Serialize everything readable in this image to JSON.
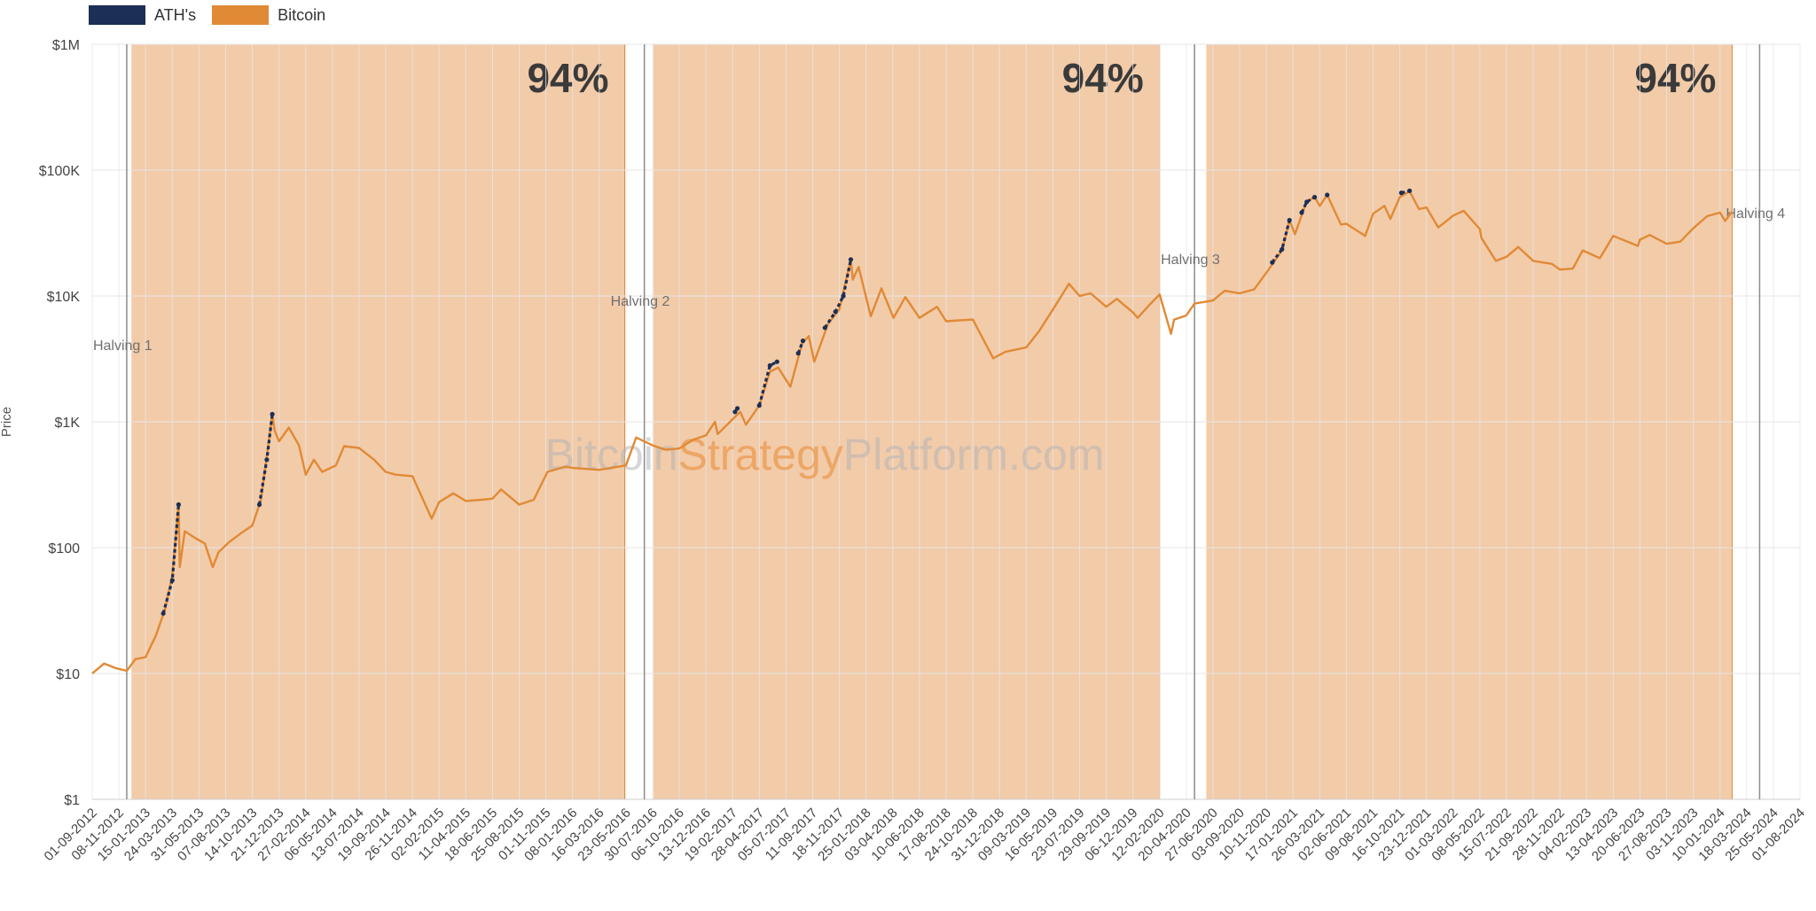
{
  "legend": [
    {
      "name": "ATH's",
      "color": "#1c2f55"
    },
    {
      "name": "Bitcoin",
      "color": "#e08a35"
    }
  ],
  "watermark": {
    "part1": "Bitcoin",
    "part2": "Strategy",
    "part3": "Platform.com"
  },
  "colors": {
    "line": "#e08a35",
    "ath": "#1c2f55",
    "band": "#f2cba9",
    "grid": "#e6e6e6"
  },
  "chart_data": {
    "type": "line",
    "title": "",
    "xlabel": "",
    "ylabel": "Price",
    "y_scale": "log",
    "ylim": [
      1,
      1000000
    ],
    "y_ticks": [
      "$1",
      "$10",
      "$100",
      "$1K",
      "$10K",
      "$100K",
      "$1M"
    ],
    "x_range": [
      "2012-09-01",
      "2024-08-01"
    ],
    "x_ticks": [
      "01-09-2012",
      "08-11-2012",
      "15-01-2013",
      "24-03-2013",
      "31-05-2013",
      "07-08-2013",
      "14-10-2013",
      "21-12-2013",
      "27-02-2014",
      "06-05-2014",
      "13-07-2014",
      "19-09-2014",
      "26-11-2014",
      "02-02-2015",
      "11-04-2015",
      "18-06-2015",
      "25-08-2015",
      "01-11-2015",
      "08-01-2016",
      "16-03-2016",
      "23-05-2016",
      "30-07-2016",
      "06-10-2016",
      "13-12-2016",
      "19-02-2017",
      "28-04-2017",
      "05-07-2017",
      "11-09-2017",
      "18-11-2017",
      "25-01-2018",
      "03-04-2018",
      "10-06-2018",
      "17-08-2018",
      "24-10-2018",
      "31-12-2018",
      "09-03-2019",
      "16-05-2019",
      "23-07-2019",
      "29-09-2019",
      "06-12-2019",
      "12-02-2020",
      "20-04-2020",
      "27-06-2020",
      "03-09-2020",
      "10-11-2020",
      "17-01-2021",
      "26-03-2021",
      "02-06-2021",
      "09-08-2021",
      "16-10-2021",
      "23-12-2021",
      "01-03-2022",
      "08-05-2022",
      "15-07-2022",
      "21-09-2022",
      "28-11-2022",
      "04-02-2023",
      "13-04-2023",
      "20-06-2023",
      "27-08-2023",
      "03-11-2023",
      "10-01-2024",
      "18-03-2024",
      "25-05-2024",
      "01-08-2024"
    ],
    "cycles": [
      {
        "label": "94%",
        "start": "2012-12-10",
        "end": "2016-05-20"
      },
      {
        "label": "94%",
        "start": "2016-08-01",
        "end": "2020-02-12"
      },
      {
        "label": "94%",
        "start": "2020-06-10",
        "end": "2024-02-10"
      }
    ],
    "halvings": [
      {
        "label": "Halving 1",
        "date": "2012-11-28"
      },
      {
        "label": "Halving 2",
        "date": "2016-07-09"
      },
      {
        "label": "Halving 3",
        "date": "2020-05-11"
      },
      {
        "label": "Halving 4",
        "date": "2024-04-20"
      }
    ],
    "series": [
      {
        "name": "Bitcoin",
        "points": [
          [
            "2012-09-01",
            10
          ],
          [
            "2012-10-01",
            12
          ],
          [
            "2012-11-01",
            11
          ],
          [
            "2012-11-28",
            10.5
          ],
          [
            "2012-12-20",
            13
          ],
          [
            "2013-01-15",
            13.5
          ],
          [
            "2013-02-10",
            20
          ],
          [
            "2013-03-05",
            32
          ],
          [
            "2013-03-24",
            60
          ],
          [
            "2013-04-09",
            220
          ],
          [
            "2013-04-12",
            70
          ],
          [
            "2013-04-25",
            135
          ],
          [
            "2013-05-20",
            120
          ],
          [
            "2013-06-15",
            108
          ],
          [
            "2013-07-05",
            70
          ],
          [
            "2013-07-20",
            92
          ],
          [
            "2013-08-15",
            110
          ],
          [
            "2013-09-15",
            130
          ],
          [
            "2013-10-14",
            150
          ],
          [
            "2013-11-05",
            240
          ],
          [
            "2013-11-25",
            700
          ],
          [
            "2013-12-04",
            1150
          ],
          [
            "2013-12-10",
            850
          ],
          [
            "2013-12-21",
            700
          ],
          [
            "2014-01-15",
            900
          ],
          [
            "2014-02-10",
            650
          ],
          [
            "2014-02-27",
            380
          ],
          [
            "2014-03-20",
            500
          ],
          [
            "2014-04-10",
            400
          ],
          [
            "2014-05-15",
            450
          ],
          [
            "2014-06-05",
            640
          ],
          [
            "2014-07-13",
            620
          ],
          [
            "2014-08-20",
            500
          ],
          [
            "2014-09-19",
            400
          ],
          [
            "2014-10-15",
            380
          ],
          [
            "2014-11-26",
            370
          ],
          [
            "2015-01-14",
            170
          ],
          [
            "2015-02-02",
            230
          ],
          [
            "2015-03-10",
            270
          ],
          [
            "2015-04-11",
            235
          ],
          [
            "2015-05-20",
            240
          ],
          [
            "2015-06-18",
            245
          ],
          [
            "2015-07-10",
            290
          ],
          [
            "2015-08-25",
            220
          ],
          [
            "2015-10-01",
            240
          ],
          [
            "2015-11-05",
            400
          ],
          [
            "2015-12-20",
            440
          ],
          [
            "2016-01-08",
            430
          ],
          [
            "2016-03-16",
            415
          ],
          [
            "2016-05-23",
            450
          ],
          [
            "2016-06-18",
            750
          ],
          [
            "2016-07-30",
            650
          ],
          [
            "2016-09-01",
            600
          ],
          [
            "2016-10-06",
            615
          ],
          [
            "2016-11-10",
            720
          ],
          [
            "2016-12-13",
            780
          ],
          [
            "2017-01-05",
            1000
          ],
          [
            "2017-01-12",
            800
          ],
          [
            "2017-02-19",
            1050
          ],
          [
            "2017-03-10",
            1200
          ],
          [
            "2017-03-25",
            950
          ],
          [
            "2017-04-28",
            1350
          ],
          [
            "2017-05-25",
            2500
          ],
          [
            "2017-06-15",
            2700
          ],
          [
            "2017-07-16",
            1900
          ],
          [
            "2017-08-15",
            4200
          ],
          [
            "2017-09-01",
            4800
          ],
          [
            "2017-09-15",
            3000
          ],
          [
            "2017-10-20",
            6000
          ],
          [
            "2017-11-18",
            7800
          ],
          [
            "2017-12-17",
            19500
          ],
          [
            "2017-12-22",
            13500
          ],
          [
            "2018-01-06",
            17000
          ],
          [
            "2018-02-06",
            6900
          ],
          [
            "2018-03-05",
            11500
          ],
          [
            "2018-04-05",
            6700
          ],
          [
            "2018-05-05",
            9800
          ],
          [
            "2018-06-10",
            6700
          ],
          [
            "2018-07-25",
            8200
          ],
          [
            "2018-08-17",
            6300
          ],
          [
            "2018-09-20",
            6400
          ],
          [
            "2018-10-24",
            6500
          ],
          [
            "2018-11-20",
            4500
          ],
          [
            "2018-12-15",
            3200
          ],
          [
            "2019-01-15",
            3600
          ],
          [
            "2019-03-09",
            3900
          ],
          [
            "2019-04-10",
            5200
          ],
          [
            "2019-05-16",
            7800
          ],
          [
            "2019-06-26",
            12500
          ],
          [
            "2019-07-23",
            10000
          ],
          [
            "2019-08-20",
            10500
          ],
          [
            "2019-09-29",
            8200
          ],
          [
            "2019-10-26",
            9500
          ],
          [
            "2019-12-06",
            7400
          ],
          [
            "2019-12-18",
            6700
          ],
          [
            "2020-01-20",
            8700
          ],
          [
            "2020-02-12",
            10300
          ],
          [
            "2020-03-12",
            5000
          ],
          [
            "2020-03-20",
            6500
          ],
          [
            "2020-04-20",
            7000
          ],
          [
            "2020-05-11",
            8700
          ],
          [
            "2020-06-27",
            9200
          ],
          [
            "2020-07-27",
            11000
          ],
          [
            "2020-09-03",
            10500
          ],
          [
            "2020-10-10",
            11300
          ],
          [
            "2020-11-10",
            15300
          ],
          [
            "2020-12-20",
            23000
          ],
          [
            "2021-01-08",
            40000
          ],
          [
            "2021-01-22",
            31000
          ],
          [
            "2021-02-20",
            56000
          ],
          [
            "2021-03-13",
            61000
          ],
          [
            "2021-03-26",
            52000
          ],
          [
            "2021-04-14",
            63500
          ],
          [
            "2021-05-19",
            37000
          ],
          [
            "2021-06-02",
            37500
          ],
          [
            "2021-07-20",
            30000
          ],
          [
            "2021-08-09",
            45000
          ],
          [
            "2021-09-07",
            52000
          ],
          [
            "2021-09-22",
            41000
          ],
          [
            "2021-10-16",
            61000
          ],
          [
            "2021-11-10",
            68000
          ],
          [
            "2021-12-04",
            49000
          ],
          [
            "2021-12-23",
            50500
          ],
          [
            "2022-01-22",
            35000
          ],
          [
            "2022-03-01",
            43500
          ],
          [
            "2022-03-28",
            47500
          ],
          [
            "2022-05-08",
            34000
          ],
          [
            "2022-05-12",
            29000
          ],
          [
            "2022-06-18",
            19000
          ],
          [
            "2022-07-15",
            20500
          ],
          [
            "2022-08-14",
            24500
          ],
          [
            "2022-09-21",
            19000
          ],
          [
            "2022-11-08",
            18000
          ],
          [
            "2022-11-28",
            16200
          ],
          [
            "2022-12-31",
            16500
          ],
          [
            "2023-01-25",
            23000
          ],
          [
            "2023-03-10",
            20000
          ],
          [
            "2023-04-13",
            30000
          ],
          [
            "2023-06-15",
            25000
          ],
          [
            "2023-06-20",
            28000
          ],
          [
            "2023-07-15",
            30500
          ],
          [
            "2023-08-27",
            26000
          ],
          [
            "2023-10-01",
            27000
          ],
          [
            "2023-11-03",
            34500
          ],
          [
            "2023-12-08",
            43000
          ],
          [
            "2024-01-10",
            46000
          ],
          [
            "2024-01-23",
            39500
          ],
          [
            "2024-02-10",
            47000
          ]
        ]
      },
      {
        "name": "ATH's",
        "segments": [
          [
            [
              "2013-03-01",
              30
            ],
            [
              "2013-03-24",
              55
            ],
            [
              "2013-04-09",
              220
            ]
          ],
          [
            [
              "2013-11-01",
              220
            ],
            [
              "2013-11-20",
              500
            ],
            [
              "2013-12-04",
              1150
            ]
          ],
          [
            [
              "2017-02-25",
              1200
            ],
            [
              "2017-03-03",
              1280
            ]
          ],
          [
            [
              "2017-04-28",
              1350
            ],
            [
              "2017-05-25",
              2800
            ],
            [
              "2017-06-12",
              3000
            ]
          ],
          [
            [
              "2017-08-05",
              3500
            ],
            [
              "2017-08-17",
              4400
            ]
          ],
          [
            [
              "2017-10-12",
              5600
            ],
            [
              "2017-11-08",
              7500
            ],
            [
              "2017-11-28",
              10000
            ],
            [
              "2017-12-17",
              19500
            ]
          ],
          [
            [
              "2020-11-25",
              18500
            ],
            [
              "2020-12-20",
              23500
            ],
            [
              "2021-01-08",
              40000
            ]
          ],
          [
            [
              "2021-02-08",
              46000
            ],
            [
              "2021-02-21",
              56000
            ],
            [
              "2021-03-13",
              61000
            ]
          ],
          [
            [
              "2021-04-14",
              63500
            ]
          ],
          [
            [
              "2021-10-20",
              66000
            ],
            [
              "2021-11-10",
              68500
            ]
          ]
        ]
      }
    ]
  }
}
